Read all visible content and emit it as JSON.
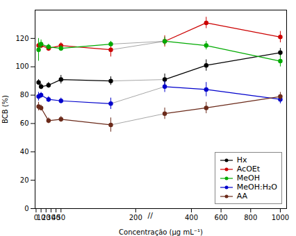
{
  "chart_data": {
    "type": "line",
    "xlabel": "Concentração (µg mL⁻¹)",
    "ylabel": "BCB (%)",
    "x": [
      5,
      10,
      25,
      50,
      150,
      220,
      500,
      1000
    ],
    "series": [
      {
        "name": "Hx",
        "color": "#000000",
        "values": [
          89,
          86,
          87,
          91,
          90,
          91,
          101,
          110
        ],
        "errors": [
          2,
          2,
          2,
          3,
          3,
          4,
          4,
          3
        ]
      },
      {
        "name": "AcOEt",
        "color": "#cc0000",
        "values": [
          115,
          115,
          113,
          115,
          112,
          118,
          131,
          121
        ],
        "errors": [
          3,
          2,
          2,
          2,
          5,
          4,
          4,
          4
        ]
      },
      {
        "name": "MeOH",
        "color": "#00aa00",
        "values": [
          112,
          116,
          114,
          113,
          116,
          118,
          115,
          104
        ],
        "errors": [
          8,
          3,
          2,
          2,
          2,
          3,
          3,
          4
        ]
      },
      {
        "name": "MeOH:H₂O",
        "color": "#0000cc",
        "values": [
          79,
          80,
          77,
          76,
          74,
          86,
          84,
          77
        ],
        "errors": [
          3,
          2,
          2,
          2,
          4,
          4,
          5,
          3
        ]
      },
      {
        "name": "AA",
        "color": "#6b2a1a",
        "values": [
          72,
          71,
          62,
          63,
          59,
          67,
          71,
          79
        ],
        "errors": [
          3,
          2,
          2,
          2,
          5,
          4,
          4,
          3
        ]
      }
    ],
    "xlim": [
      -2,
      1042.5
    ],
    "xticks": [
      0,
      10,
      20,
      30,
      40,
      50,
      200,
      400,
      600,
      800,
      1000
    ],
    "ylim": [
      0,
      140
    ],
    "yticks": [
      0,
      20,
      40,
      60,
      80,
      100,
      120
    ],
    "grid": false,
    "legend": "lower right",
    "marker": "circle",
    "annotations": [
      {
        "text": "//"
      }
    ]
  }
}
